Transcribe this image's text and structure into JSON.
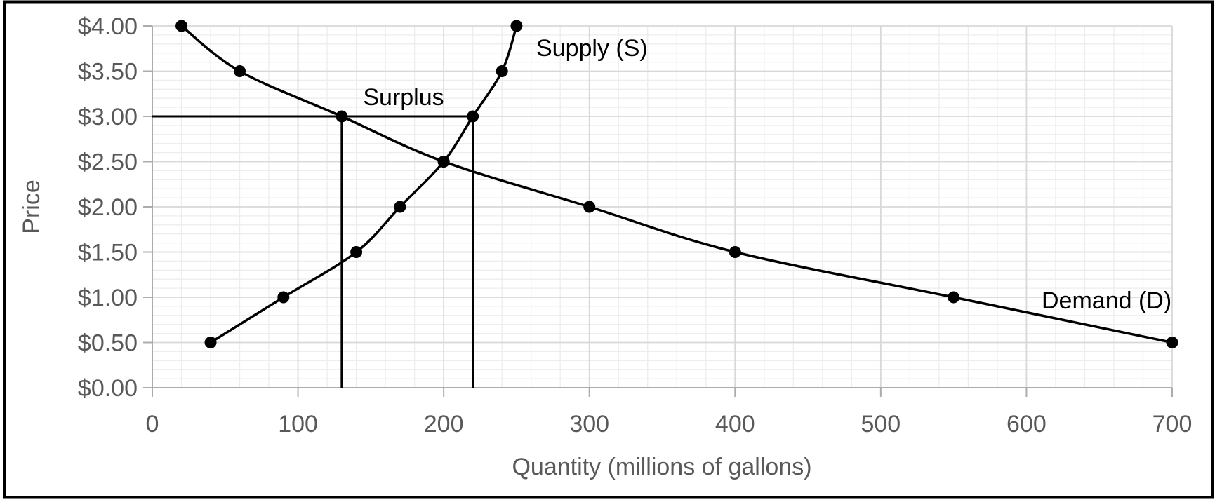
{
  "chart_data": {
    "type": "line",
    "title": "",
    "xlabel": "Quantity (millions of gallons)",
    "ylabel": "Price",
    "xlim": [
      0,
      700
    ],
    "ylim": [
      0,
      4
    ],
    "x_major_step": 100,
    "x_minor_step": 20,
    "y_major_step": 0.5,
    "y_minor_step": 0.1,
    "x_ticks": [
      "0",
      "100",
      "200",
      "300",
      "400",
      "500",
      "600",
      "700"
    ],
    "y_ticks": [
      "$0.00",
      "$0.50",
      "$1.00",
      "$1.50",
      "$2.00",
      "$2.50",
      "$3.00",
      "$3.50",
      "$4.00"
    ],
    "grid": "major-and-minor",
    "legend_position": "inline-labels-on-plot",
    "series": [
      {
        "name": "Supply (S)",
        "points": [
          [
            40,
            0.5
          ],
          [
            90,
            1.0
          ],
          [
            140,
            1.5
          ],
          [
            170,
            2.0
          ],
          [
            200,
            2.5
          ],
          [
            220,
            3.0
          ],
          [
            240,
            3.5
          ],
          [
            250,
            4.0
          ]
        ]
      },
      {
        "name": "Demand (D)",
        "points": [
          [
            20,
            4.0
          ],
          [
            60,
            3.5
          ],
          [
            130,
            3.0
          ],
          [
            200,
            2.5
          ],
          [
            300,
            2.0
          ],
          [
            400,
            1.5
          ],
          [
            550,
            1.0
          ],
          [
            700,
            0.5
          ]
        ]
      }
    ],
    "annotations": {
      "surplus_label": "Surplus",
      "price_line": {
        "price": 3.0,
        "from_q": 0,
        "to_q": 220
      },
      "drop_lines": [
        {
          "q": 130,
          "price": 3.0
        },
        {
          "q": 220,
          "price": 3.0
        }
      ],
      "equilibrium_point": [
        200,
        2.5
      ],
      "surplus_at_price_3": {
        "quantity_demanded": 130,
        "quantity_supplied": 220
      }
    },
    "colors": {
      "series_line": "#000000",
      "marker": "#000000",
      "annotation_line": "#000000",
      "tick_label": "#595959",
      "axis_line": "#ACACAC",
      "major_grid": "#D8D8D8",
      "minor_grid": "#EDEDED",
      "border": "#000000",
      "background": "#FFFFFF"
    }
  }
}
